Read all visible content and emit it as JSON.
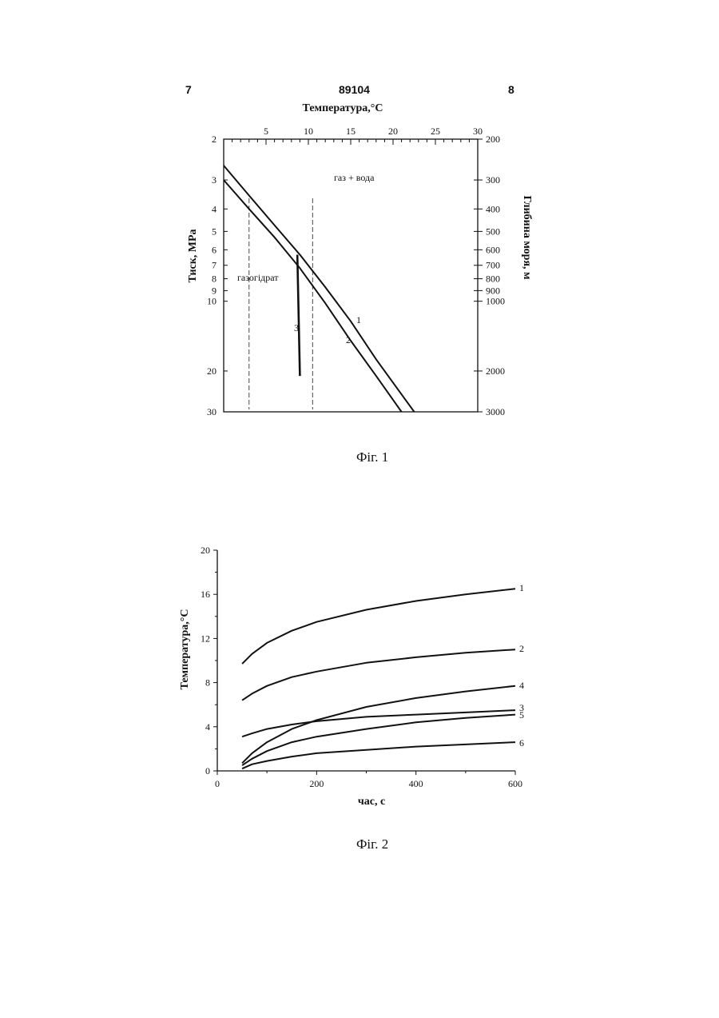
{
  "header": {
    "page_left": "7",
    "patent_number": "89104",
    "page_right": "8"
  },
  "figures": [
    {
      "caption": "Фіг. 1"
    },
    {
      "caption": "Фіг. 2"
    }
  ],
  "chart_data": [
    {
      "type": "line",
      "title": "",
      "xlabel": "Температура,°С",
      "ylabel": "Тиск, МРа",
      "y2label": "Глибина моря, м",
      "xlim": [
        0,
        30
      ],
      "ylim": [
        2,
        30
      ],
      "y_scale": "log",
      "x_ticks": [
        "5",
        "10",
        "15",
        "20",
        "25",
        "30"
      ],
      "y_ticks": [
        "2",
        "3",
        "4",
        "5",
        "6",
        "7",
        "8",
        "9",
        "10",
        "20",
        "30"
      ],
      "y2_ticks": [
        "200",
        "300",
        "400",
        "500",
        "600",
        "700",
        "800",
        "900",
        "1000",
        "2000",
        "3000"
      ],
      "region_labels": [
        "газ + вода",
        "газогідрат"
      ],
      "series": [
        {
          "name": "1",
          "x": [
            0,
            3,
            6,
            9,
            12,
            15,
            18,
            22.5
          ],
          "y": [
            2.6,
            3.5,
            4.7,
            6.3,
            8.7,
            12.2,
            17.8,
            30
          ]
        },
        {
          "name": "2",
          "x": [
            0,
            3,
            6,
            9,
            12,
            15,
            18,
            21
          ],
          "y": [
            3.0,
            4.0,
            5.3,
            7.2,
            10.2,
            14.8,
            21.0,
            30
          ]
        },
        {
          "name": "3",
          "x": [
            8.7,
            9.0
          ],
          "y": [
            6.3,
            21
          ]
        }
      ],
      "reference_lines_x": [
        3,
        10.5
      ]
    },
    {
      "type": "line",
      "title": "",
      "xlabel": "час, с",
      "ylabel": "Температура,°С",
      "xlim": [
        0,
        600
      ],
      "ylim": [
        0,
        20
      ],
      "x_ticks": [
        "0",
        "200",
        "400",
        "600"
      ],
      "y_ticks": [
        "0",
        "4",
        "8",
        "12",
        "16",
        "20"
      ],
      "categories_x": [
        50,
        70,
        100,
        150,
        200,
        300,
        400,
        500,
        600
      ],
      "series": [
        {
          "name": "1",
          "values": [
            9.7,
            10.6,
            11.6,
            12.7,
            13.5,
            14.6,
            15.4,
            16.0,
            16.5
          ]
        },
        {
          "name": "2",
          "values": [
            6.4,
            7.0,
            7.7,
            8.5,
            9.0,
            9.8,
            10.3,
            10.7,
            11.0
          ]
        },
        {
          "name": "3",
          "values": [
            3.1,
            3.4,
            3.8,
            4.2,
            4.5,
            4.9,
            5.1,
            5.3,
            5.5
          ]
        },
        {
          "name": "4",
          "values": [
            0.7,
            1.6,
            2.6,
            3.8,
            4.6,
            5.8,
            6.6,
            7.2,
            7.7
          ]
        },
        {
          "name": "5",
          "values": [
            0.5,
            1.1,
            1.8,
            2.6,
            3.1,
            3.8,
            4.4,
            4.8,
            5.1
          ]
        },
        {
          "name": "6",
          "values": [
            0.2,
            0.6,
            0.9,
            1.3,
            1.6,
            1.9,
            2.2,
            2.4,
            2.6
          ]
        }
      ]
    }
  ]
}
